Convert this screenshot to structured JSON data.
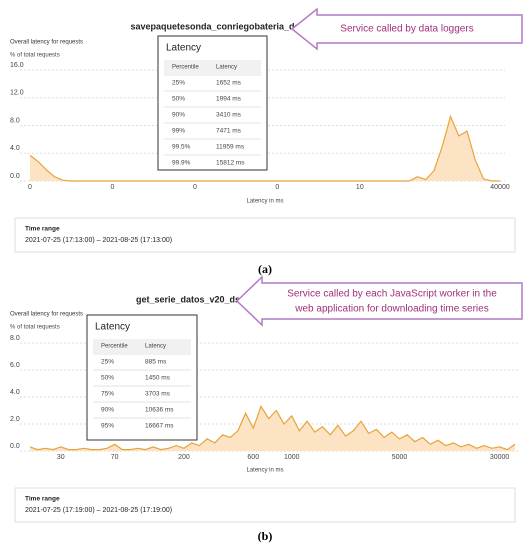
{
  "chart_data": [
    {
      "type": "area",
      "title": "savepaquetesonda_conriegobateria_ds",
      "annotation": [
        "Service called by data loggers"
      ],
      "subtitle": "Overall latency for requests",
      "y_label": "% of total requests",
      "x_label": "Latency in ms",
      "categories": [
        "0",
        null,
        null,
        null,
        null,
        null,
        null,
        null,
        null,
        null,
        "0",
        null,
        null,
        null,
        null,
        null,
        null,
        null,
        null,
        null,
        "0",
        null,
        null,
        null,
        null,
        null,
        null,
        null,
        null,
        null,
        "0",
        null,
        null,
        null,
        null,
        null,
        null,
        null,
        null,
        null,
        "10",
        null,
        null,
        null,
        null,
        null,
        null,
        null,
        null,
        null,
        null,
        null,
        null,
        null,
        null,
        null,
        null,
        "40000"
      ],
      "values": [
        3.7,
        2.8,
        1.6,
        0.6,
        0.1,
        0,
        0,
        0,
        0,
        0,
        0,
        0,
        0,
        0,
        0,
        0,
        0,
        0,
        0,
        0,
        0,
        0,
        0,
        0,
        0,
        0,
        0,
        0,
        0,
        0,
        0,
        0,
        0,
        0,
        0,
        0,
        0,
        0,
        0,
        0,
        0,
        0,
        0,
        0,
        0,
        0,
        0,
        0.6,
        0.2,
        1.5,
        5,
        9.3,
        6.5,
        7.2,
        3,
        0.3,
        0,
        0
      ],
      "color": "#e8a33d",
      "fill": "#fbe3c4",
      "ylim": [
        0,
        16
      ],
      "yticks": [
        {
          "value": 0,
          "label": "0.0"
        },
        {
          "value": 4,
          "label": "4.0"
        },
        {
          "value": 8,
          "label": "8.0"
        },
        {
          "value": 12,
          "label": "12.0"
        },
        {
          "value": 16,
          "label": "16.0"
        }
      ],
      "grid": true,
      "latency_table": {
        "title": "Latency",
        "columns": [
          "Percentile",
          "Latency"
        ],
        "rows": [
          [
            "25%",
            "1652 ms"
          ],
          [
            "50%",
            "1994 ms"
          ],
          [
            "90%",
            "3410 ms"
          ],
          [
            "99%",
            "7471 ms"
          ],
          [
            "99.5%",
            "11959 ms"
          ],
          [
            "99.9%",
            "15812 ms"
          ]
        ]
      },
      "time_range_label": "Time range",
      "time_range": "2021-07-25 (17:13:00) – 2021-08-25 (17:13:00)",
      "caption": "(a)"
    },
    {
      "type": "area",
      "title": "get_serie_datos_v20_ds",
      "annotation": [
        "Service called by each JavaScript worker in the",
        "web application for downloading time series"
      ],
      "subtitle": "Overall latency for requests",
      "y_label": "% of total requests",
      "x_label": "Latency in ms",
      "categories": [
        null,
        null,
        null,
        null,
        "30",
        null,
        null,
        null,
        null,
        null,
        null,
        "70",
        null,
        null,
        null,
        null,
        null,
        null,
        null,
        null,
        "200",
        null,
        null,
        null,
        null,
        null,
        null,
        null,
        null,
        "600",
        null,
        null,
        null,
        null,
        "1000",
        null,
        null,
        null,
        null,
        null,
        null,
        null,
        null,
        null,
        null,
        null,
        null,
        null,
        "5000",
        null,
        null,
        null,
        null,
        null,
        null,
        null,
        null,
        null,
        null,
        null,
        null,
        "30000",
        null,
        null
      ],
      "values": [
        0.3,
        0.1,
        0.2,
        0.1,
        0.3,
        0.1,
        0.1,
        0.2,
        0.1,
        0.1,
        0.2,
        0.5,
        0.1,
        0.1,
        0.2,
        0.1,
        0.3,
        0.1,
        0.2,
        0.4,
        0.2,
        0.6,
        0.4,
        0.9,
        0.6,
        1.2,
        1.0,
        1.5,
        2.8,
        1.7,
        3.3,
        2.4,
        3.0,
        2.0,
        2.6,
        1.5,
        2.2,
        1.4,
        1.8,
        1.2,
        1.9,
        1.1,
        1.5,
        2.2,
        1.3,
        1.6,
        1.0,
        1.4,
        0.9,
        1.2,
        0.7,
        1.0,
        0.5,
        0.8,
        0.4,
        0.6,
        0.3,
        0.5,
        0.2,
        0.4,
        0.2,
        0.3,
        0.1,
        0.5
      ],
      "color": "#e8a33d",
      "fill": "#fbe3c4",
      "ylim": [
        0,
        8
      ],
      "yticks": [
        {
          "value": 0,
          "label": "0.0"
        },
        {
          "value": 2,
          "label": "2.0"
        },
        {
          "value": 4,
          "label": "4.0"
        },
        {
          "value": 6,
          "label": "6.0"
        },
        {
          "value": 8,
          "label": "8.0"
        }
      ],
      "grid": true,
      "latency_table": {
        "title": "Latency",
        "columns": [
          "Percentile",
          "Latency"
        ],
        "rows": [
          [
            "25%",
            "885 ms"
          ],
          [
            "50%",
            "1450 ms"
          ],
          [
            "75%",
            "3703 ms"
          ],
          [
            "90%",
            "10636 ms"
          ],
          [
            "95%",
            "16667 ms"
          ]
        ]
      },
      "time_range_label": "Time range",
      "time_range": "2021-07-25 (17:19:00) – 2021-08-25 (17:19:00)",
      "caption": "(b)"
    }
  ]
}
